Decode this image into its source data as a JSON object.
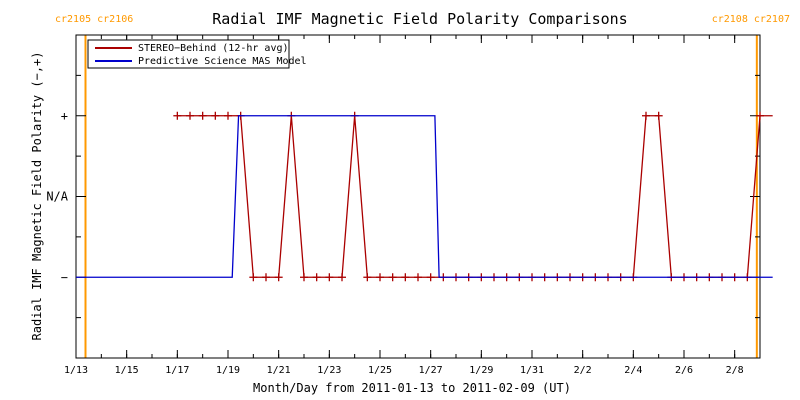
{
  "chart_data": {
    "type": "line",
    "title": "Radial IMF Magnetic Field Polarity Comparisons",
    "xlabel": "Month/Day from 2011-01-13 to 2011-02-09 (UT)",
    "ylabel": "Radial IMF Magnetic Field Polarity (−,+)",
    "xlim": [
      "2011-01-13 00:00",
      "2011-02-09 00:00"
    ],
    "x_ticks": [
      {
        "date": "2011-01-13",
        "label": "1/13"
      },
      {
        "date": "2011-01-15",
        "label": "1/15"
      },
      {
        "date": "2011-01-17",
        "label": "1/17"
      },
      {
        "date": "2011-01-19",
        "label": "1/19"
      },
      {
        "date": "2011-01-21",
        "label": "1/21"
      },
      {
        "date": "2011-01-23",
        "label": "1/23"
      },
      {
        "date": "2011-01-25",
        "label": "1/25"
      },
      {
        "date": "2011-01-27",
        "label": "1/27"
      },
      {
        "date": "2011-01-29",
        "label": "1/29"
      },
      {
        "date": "2011-01-31",
        "label": "1/31"
      },
      {
        "date": "2011-02-02",
        "label": "2/2"
      },
      {
        "date": "2011-02-04",
        "label": "2/4"
      },
      {
        "date": "2011-02-06",
        "label": "2/6"
      },
      {
        "date": "2011-02-08",
        "label": "2/8"
      }
    ],
    "y_categories": [
      {
        "value": -1,
        "label": "−"
      },
      {
        "value": 0,
        "label": "N/A"
      },
      {
        "value": 1,
        "label": "+"
      }
    ],
    "ylim": [
      -2,
      2
    ],
    "carrington_rotations": [
      {
        "date": "2011-01-13 09:00",
        "label": "cr2105 cr2106"
      },
      {
        "date": "2011-02-08 21:00",
        "label": "cr2108 cr2107"
      }
    ],
    "carrington_color": "#ff9900",
    "legend_position": "top-left",
    "series": [
      {
        "name": "STEREO−Behind (12-hr avg)",
        "color": "#aa0000",
        "marker": "plus",
        "points": [
          [
            "2011-01-17 00:00",
            1
          ],
          [
            "2011-01-17 12:00",
            1
          ],
          [
            "2011-01-18 00:00",
            1
          ],
          [
            "2011-01-18 12:00",
            1
          ],
          [
            "2011-01-19 00:00",
            1
          ],
          [
            "2011-01-19 12:00",
            1
          ],
          [
            "2011-01-20 00:00",
            -1
          ],
          [
            "2011-01-20 12:00",
            -1
          ],
          [
            "2011-01-21 00:00",
            -1
          ],
          [
            "2011-01-21 12:00",
            1
          ],
          [
            "2011-01-22 00:00",
            -1
          ],
          [
            "2011-01-22 12:00",
            -1
          ],
          [
            "2011-01-23 00:00",
            -1
          ],
          [
            "2011-01-23 12:00",
            -1
          ],
          [
            "2011-01-24 00:00",
            1
          ],
          [
            "2011-01-24 12:00",
            -1
          ],
          [
            "2011-01-25 00:00",
            -1
          ],
          [
            "2011-01-25 12:00",
            -1
          ],
          [
            "2011-01-26 00:00",
            -1
          ],
          [
            "2011-01-26 12:00",
            -1
          ],
          [
            "2011-01-27 00:00",
            -1
          ],
          [
            "2011-01-27 12:00",
            -1
          ],
          [
            "2011-01-28 00:00",
            -1
          ],
          [
            "2011-01-28 12:00",
            -1
          ],
          [
            "2011-01-29 00:00",
            -1
          ],
          [
            "2011-01-29 12:00",
            -1
          ],
          [
            "2011-01-30 00:00",
            -1
          ],
          [
            "2011-01-30 12:00",
            -1
          ],
          [
            "2011-01-31 00:00",
            -1
          ],
          [
            "2011-01-31 12:00",
            -1
          ],
          [
            "2011-02-01 00:00",
            -1
          ],
          [
            "2011-02-01 12:00",
            -1
          ],
          [
            "2011-02-02 00:00",
            -1
          ],
          [
            "2011-02-02 12:00",
            -1
          ],
          [
            "2011-02-03 00:00",
            -1
          ],
          [
            "2011-02-03 12:00",
            -1
          ],
          [
            "2011-02-04 00:00",
            -1
          ],
          [
            "2011-02-04 12:00",
            1
          ],
          [
            "2011-02-05 00:00",
            1
          ],
          [
            "2011-02-05 12:00",
            -1
          ],
          [
            "2011-02-06 00:00",
            -1
          ],
          [
            "2011-02-06 12:00",
            -1
          ],
          [
            "2011-02-07 00:00",
            -1
          ],
          [
            "2011-02-07 12:00",
            -1
          ],
          [
            "2011-02-08 00:00",
            -1
          ],
          [
            "2011-02-08 12:00",
            -1
          ],
          [
            "2011-02-09 00:00",
            1
          ],
          [
            "2011-02-09 12:00",
            1
          ]
        ]
      },
      {
        "name": "Predictive Science MAS Model",
        "color": "#0000cc",
        "marker": "none",
        "points": [
          [
            "2011-01-13 00:00",
            -1
          ],
          [
            "2011-01-19 04:00",
            -1
          ],
          [
            "2011-01-19 10:00",
            1
          ],
          [
            "2011-01-27 04:00",
            1
          ],
          [
            "2011-01-27 08:00",
            -1
          ],
          [
            "2011-02-09 12:00",
            -1
          ]
        ]
      }
    ]
  }
}
